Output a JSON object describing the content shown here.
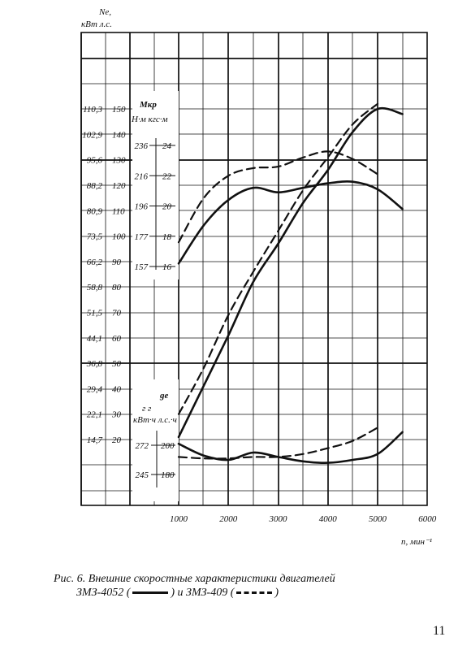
{
  "chart_data": {
    "type": "line",
    "x_unit_label": "n, мин⁻¹",
    "x_ticks": [
      1000,
      2000,
      3000,
      4000,
      5000,
      6000
    ],
    "power": {
      "title": "Ne,",
      "units": "кВт л.с.",
      "ticks_kw": [
        "14,7",
        "22,1",
        "29,4",
        "36,8",
        "44,1",
        "51,5",
        "58,8",
        "66,2",
        "73,5",
        "80,9",
        "88,2",
        "95,6",
        "102,9",
        "110,3"
      ],
      "ticks_hp": [
        "20",
        "30",
        "40",
        "50",
        "60",
        "70",
        "80",
        "90",
        "100",
        "110",
        "120",
        "130",
        "140",
        "150"
      ],
      "ylim_hp": [
        20,
        150
      ]
    },
    "torque": {
      "title": "Mкр",
      "units": "Н·м кгс·м",
      "ticks_nm": [
        "157",
        "177",
        "196",
        "216",
        "236"
      ],
      "ticks_kgfm": [
        "16",
        "18",
        "20",
        "22",
        "24"
      ],
      "ylim_kgfm": [
        16,
        24
      ]
    },
    "fuel": {
      "title": "ge",
      "units_top": "г    г",
      "units_bottom": "кВт·ч л.с.·ч",
      "ticks_kwh": [
        "245",
        "272"
      ],
      "ticks_hph": [
        "180",
        "200"
      ]
    },
    "series": [
      {
        "name": "ЗМЗ-4052",
        "style": "solid",
        "quantity": "Ne",
        "x": [
          1000,
          1500,
          2000,
          2500,
          3000,
          3500,
          4000,
          4500,
          5000,
          5500
        ],
        "values": [
          21,
          41,
          61,
          82,
          97,
          113,
          126,
          141,
          150,
          148
        ]
      },
      {
        "name": "ЗМЗ-409",
        "style": "dashed",
        "quantity": "Ne",
        "x": [
          1000,
          1500,
          2000,
          2500,
          3000,
          3500,
          4000,
          4500,
          5000
        ],
        "values": [
          30,
          48,
          69,
          86,
          102,
          118,
          131,
          144,
          152
        ]
      },
      {
        "name": "ЗМЗ-4052",
        "style": "solid",
        "quantity": "Mкр",
        "x": [
          1000,
          1500,
          2000,
          2500,
          3000,
          3500,
          4000,
          4500,
          5000,
          5500
        ],
        "values": [
          16.2,
          18.7,
          20.4,
          21.2,
          20.9,
          21.2,
          21.5,
          21.6,
          21.1,
          19.8
        ]
      },
      {
        "name": "ЗМЗ-409",
        "style": "dashed",
        "quantity": "Mкр",
        "x": [
          1000,
          1500,
          2000,
          2500,
          3000,
          3500,
          4000,
          4500,
          5000
        ],
        "values": [
          17.6,
          20.5,
          22.0,
          22.5,
          22.6,
          23.2,
          23.6,
          23.1,
          22.1
        ]
      },
      {
        "name": "ЗМЗ-4052",
        "style": "solid",
        "quantity": "ge",
        "x": [
          1000,
          1500,
          2000,
          2500,
          3000,
          3500,
          4000,
          4500,
          5000,
          5500
        ],
        "values": [
          201,
          193,
          190,
          195,
          192,
          189,
          188,
          190,
          194,
          209
        ]
      },
      {
        "name": "ЗМЗ-409",
        "style": "dashed",
        "quantity": "ge",
        "x": [
          1000,
          1500,
          2000,
          2500,
          3000,
          3500,
          4000,
          4500,
          5000
        ],
        "values": [
          192,
          191,
          191,
          192,
          192,
          194,
          198,
          203,
          212
        ]
      }
    ]
  },
  "caption": {
    "line1": "Рис. 6. Внешние скоростные характеристики двигателей",
    "line2_a": "ЗМЗ-4052 (",
    "line2_b": ") и ЗМЗ-409 (",
    "line2_c": ")"
  },
  "page_number": "11"
}
